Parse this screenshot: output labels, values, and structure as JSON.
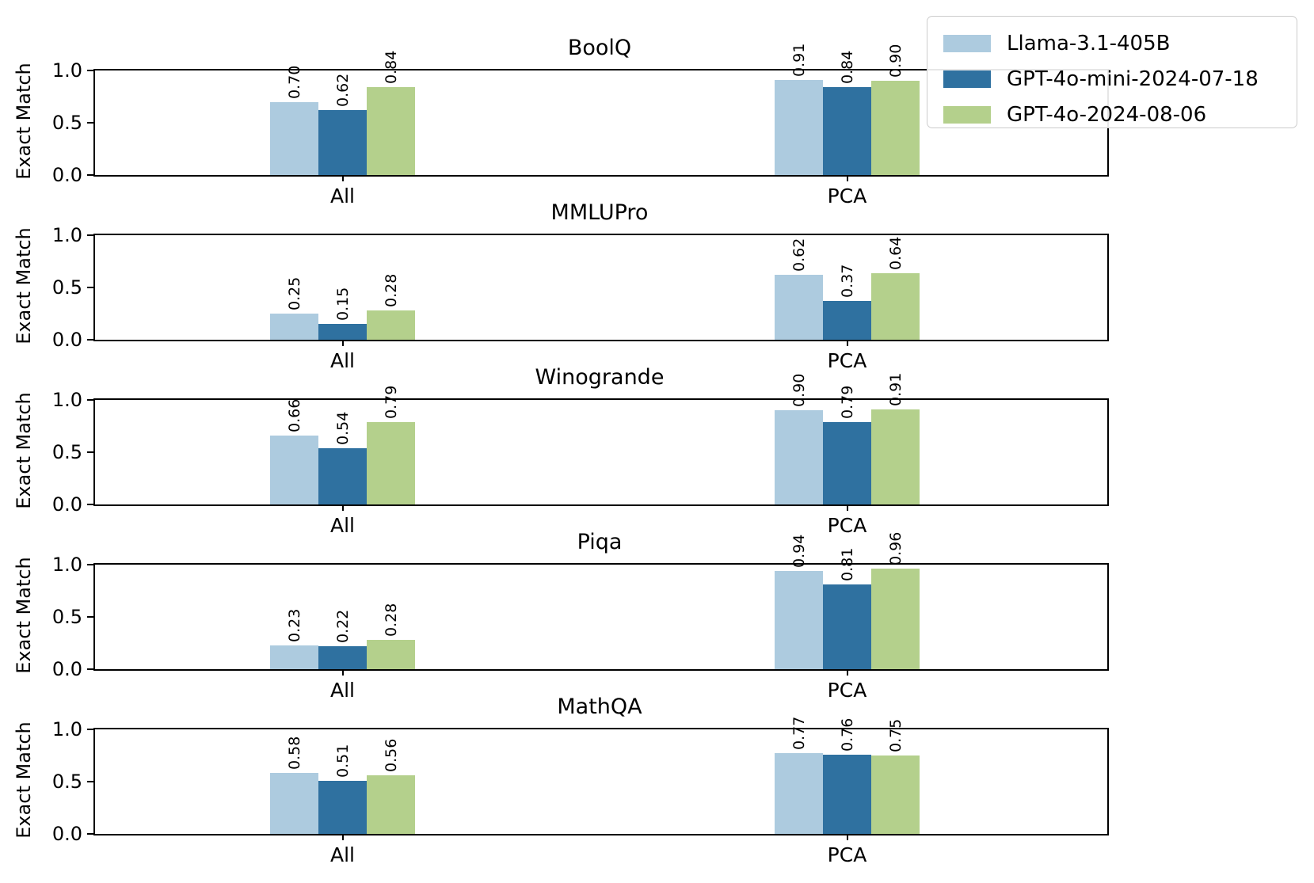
{
  "figure": {
    "ylabel": "Exact Match",
    "yticks": [
      "0.0",
      "0.5",
      "1.0"
    ],
    "categories": [
      "All",
      "PCA"
    ],
    "background": "#ffffff",
    "spine_color": "#000000"
  },
  "legend": {
    "position": "upper right",
    "entries": [
      {
        "label": "Llama-3.1-405B",
        "color": "#adcbdf"
      },
      {
        "label": "GPT-4o-mini-2024-07-18",
        "color": "#2f71a0"
      },
      {
        "label": "GPT-4o-2024-08-06",
        "color": "#b4d08c"
      }
    ]
  },
  "chart_data": [
    {
      "type": "bar",
      "title": "BoolQ",
      "ylabel": "Exact Match",
      "ylim": [
        0.0,
        1.0
      ],
      "yticks": [
        0.0,
        0.5,
        1.0
      ],
      "categories": [
        "All",
        "PCA"
      ],
      "series": [
        {
          "name": "Llama-3.1-405B",
          "values": [
            0.7,
            0.91
          ]
        },
        {
          "name": "GPT-4o-mini-2024-07-18",
          "values": [
            0.62,
            0.84
          ]
        },
        {
          "name": "GPT-4o-2024-08-06",
          "values": [
            0.84,
            0.9
          ]
        }
      ]
    },
    {
      "type": "bar",
      "title": "MMLUPro",
      "ylabel": "Exact Match",
      "ylim": [
        0.0,
        1.0
      ],
      "yticks": [
        0.0,
        0.5,
        1.0
      ],
      "categories": [
        "All",
        "PCA"
      ],
      "series": [
        {
          "name": "Llama-3.1-405B",
          "values": [
            0.25,
            0.62
          ]
        },
        {
          "name": "GPT-4o-mini-2024-07-18",
          "values": [
            0.15,
            0.37
          ]
        },
        {
          "name": "GPT-4o-2024-08-06",
          "values": [
            0.28,
            0.64
          ]
        }
      ]
    },
    {
      "type": "bar",
      "title": "Winogrande",
      "ylabel": "Exact Match",
      "ylim": [
        0.0,
        1.0
      ],
      "yticks": [
        0.0,
        0.5,
        1.0
      ],
      "categories": [
        "All",
        "PCA"
      ],
      "series": [
        {
          "name": "Llama-3.1-405B",
          "values": [
            0.66,
            0.9
          ]
        },
        {
          "name": "GPT-4o-mini-2024-07-18",
          "values": [
            0.54,
            0.79
          ]
        },
        {
          "name": "GPT-4o-2024-08-06",
          "values": [
            0.79,
            0.91
          ]
        }
      ]
    },
    {
      "type": "bar",
      "title": "Piqa",
      "ylabel": "Exact Match",
      "ylim": [
        0.0,
        1.0
      ],
      "yticks": [
        0.0,
        0.5,
        1.0
      ],
      "categories": [
        "All",
        "PCA"
      ],
      "series": [
        {
          "name": "Llama-3.1-405B",
          "values": [
            0.23,
            0.94
          ]
        },
        {
          "name": "GPT-4o-mini-2024-07-18",
          "values": [
            0.22,
            0.81
          ]
        },
        {
          "name": "GPT-4o-2024-08-06",
          "values": [
            0.28,
            0.96
          ]
        }
      ]
    },
    {
      "type": "bar",
      "title": "MathQA",
      "ylabel": "Exact Match",
      "ylim": [
        0.0,
        1.0
      ],
      "yticks": [
        0.0,
        0.5,
        1.0
      ],
      "categories": [
        "All",
        "PCA"
      ],
      "series": [
        {
          "name": "Llama-3.1-405B",
          "values": [
            0.58,
            0.77
          ]
        },
        {
          "name": "GPT-4o-mini-2024-07-18",
          "values": [
            0.51,
            0.76
          ]
        },
        {
          "name": "GPT-4o-2024-08-06",
          "values": [
            0.56,
            0.75
          ]
        }
      ]
    }
  ]
}
